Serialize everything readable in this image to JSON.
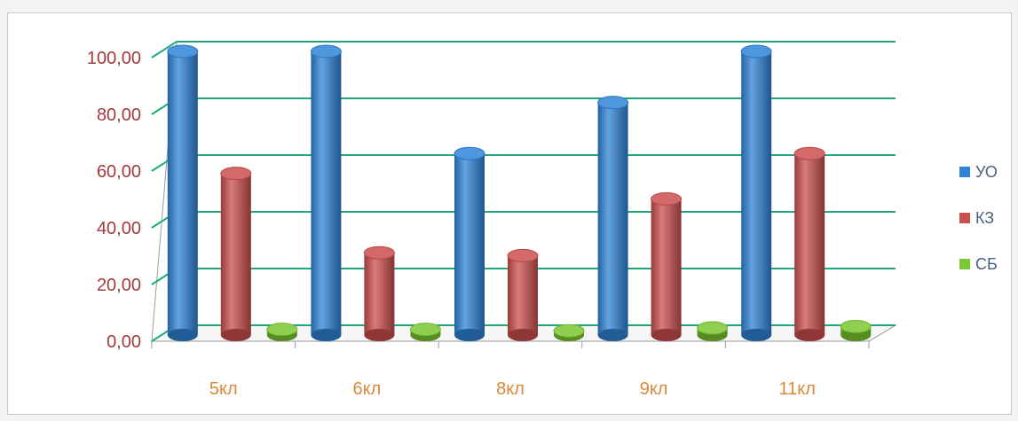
{
  "chart_data": {
    "type": "bar",
    "categories": [
      "5кл",
      "6кл",
      "8кл",
      "9кл",
      "11кл"
    ],
    "series": [
      {
        "name": "УО",
        "values": [
          100.0,
          100.0,
          64.0,
          82.0,
          100.0
        ],
        "color": "#2f84d8"
      },
      {
        "name": "КЗ",
        "values": [
          57.0,
          29.0,
          28.0,
          48.0,
          64.0
        ],
        "color": "#cc4f4f"
      },
      {
        "name": "СБ",
        "values": [
          2.0,
          2.0,
          1.5,
          2.5,
          3.0
        ],
        "color": "#7cc832"
      }
    ],
    "y_tick_labels": [
      "0,00",
      "20,00",
      "40,00",
      "60,00",
      "80,00",
      "100,00"
    ],
    "ylim": [
      0,
      100
    ],
    "grid": true,
    "grid_color": "#1fa87a",
    "axis_label_color": "#a23a3a",
    "category_label_color": "#d88a3a",
    "legend_position": "right"
  }
}
